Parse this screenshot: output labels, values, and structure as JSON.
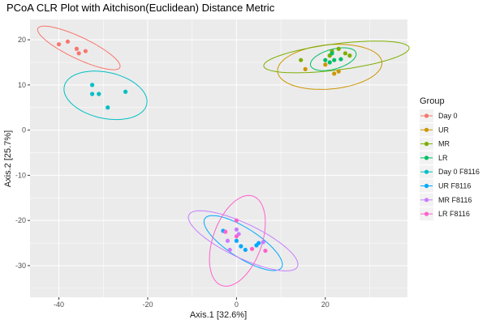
{
  "chart_data": {
    "type": "scatter",
    "title": "PCoA CLR Plot with Aitchison(Euclidean) Distance Metric",
    "xlabel": "Axis.1   [32.6%]",
    "ylabel": "Axis.2   [25.7%]",
    "xlim": [
      -46.5,
      38.5
    ],
    "ylim": [
      -37.0,
      24.5
    ],
    "x_ticks": [
      -40,
      -20,
      0,
      20
    ],
    "y_ticks": [
      -30,
      -20,
      -10,
      0,
      10,
      20
    ],
    "grid": true,
    "legend_position": "right",
    "legend_title": "Group",
    "series": [
      {
        "name": "Day 0",
        "color": "#F8766D",
        "points": [
          [
            -40,
            19
          ],
          [
            -38,
            19.6
          ],
          [
            -36,
            18
          ],
          [
            -35.5,
            17
          ],
          [
            -34,
            17.5
          ]
        ],
        "ellipse": {
          "cx": -35.5,
          "cy": 18.2,
          "rx": 10.2,
          "ry": 2.4,
          "angle": -25
        }
      },
      {
        "name": "UR",
        "color": "#CD9600",
        "points": [
          [
            15.5,
            13.5
          ],
          [
            22,
            12.5
          ],
          [
            23,
            13
          ],
          [
            20,
            14.5
          ],
          [
            21,
            16.5
          ]
        ],
        "ellipse": {
          "cx": 21,
          "cy": 14,
          "rx": 11.8,
          "ry": 4.9,
          "angle": 5
        }
      },
      {
        "name": "MR",
        "color": "#7CAE00",
        "points": [
          [
            14.5,
            15.5
          ],
          [
            21.5,
            17.5
          ],
          [
            23,
            18
          ],
          [
            24.5,
            17
          ],
          [
            25.5,
            16.5
          ],
          [
            21,
            16.5
          ]
        ],
        "ellipse": {
          "cx": 22.5,
          "cy": 16.2,
          "rx": 16.5,
          "ry": 2.9,
          "angle": 7
        }
      },
      {
        "name": "LR",
        "color": "#00BE67",
        "points": [
          [
            20,
            15.5
          ],
          [
            21,
            15
          ],
          [
            22,
            15.5
          ],
          [
            23.5,
            15.7
          ],
          [
            21.5,
            17
          ]
        ],
        "ellipse": {
          "cx": 21.8,
          "cy": 15.7,
          "rx": 5.3,
          "ry": 2.2,
          "angle": 15
        }
      },
      {
        "name": "Day 0 F8116",
        "color": "#00BFC4",
        "points": [
          [
            -32.5,
            10
          ],
          [
            -32.5,
            8
          ],
          [
            -31,
            8
          ],
          [
            -29,
            5
          ],
          [
            -25,
            8.5
          ]
        ],
        "ellipse": {
          "cx": -29.5,
          "cy": 7.7,
          "rx": 9.5,
          "ry": 5.1,
          "angle": -12
        }
      },
      {
        "name": "UR  F8116",
        "color": "#00A9FF",
        "points": [
          [
            -3,
            -22.3
          ],
          [
            0,
            -24.5
          ],
          [
            1,
            -25.7
          ],
          [
            2,
            -26.5
          ],
          [
            4.5,
            -25.5
          ],
          [
            5,
            -25
          ]
        ],
        "ellipse": {
          "cx": 1.5,
          "cy": -25,
          "rx": 10.2,
          "ry": 3.3,
          "angle": -32
        }
      },
      {
        "name": "MR  F8116",
        "color": "#C77CFF",
        "points": [
          [
            0,
            -22
          ],
          [
            -2,
            -24.5
          ],
          [
            0.5,
            -23
          ],
          [
            6,
            -24.8
          ],
          [
            -1.5,
            -26.5
          ]
        ],
        "ellipse": {
          "cx": 1.5,
          "cy": -24.5,
          "rx": 13.5,
          "ry": 3.8,
          "angle": -25
        }
      },
      {
        "name": "LR  F8116",
        "color": "#FF61CC",
        "points": [
          [
            0,
            -20
          ],
          [
            -2.5,
            -22.5
          ],
          [
            0,
            -23.5
          ],
          [
            3.5,
            -26.3
          ],
          [
            6.5,
            -26.7
          ]
        ],
        "ellipse": {
          "cx": 0.2,
          "cy": -24.5,
          "rx": 10.5,
          "ry": 5.5,
          "angle": 70
        }
      }
    ]
  }
}
